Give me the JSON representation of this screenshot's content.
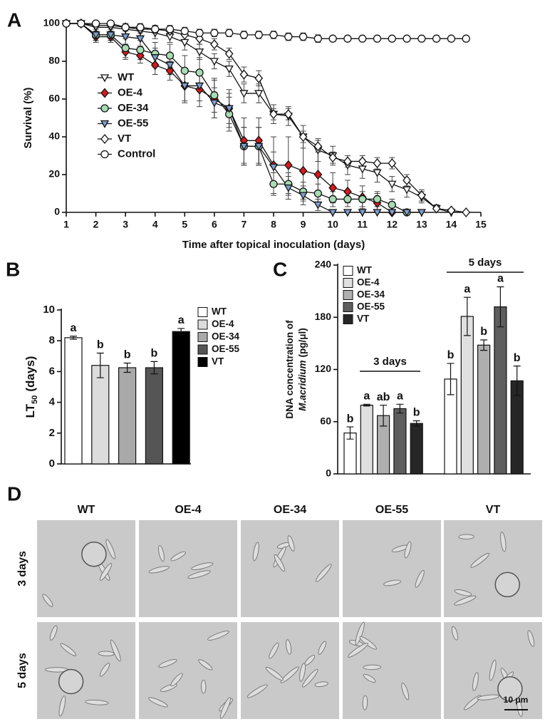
{
  "chart_data": [
    {
      "type": "line",
      "panel": "A",
      "xlabel": "Time after topical inoculation (days)",
      "ylabel": "Survival (%)",
      "xlim": [
        1,
        15
      ],
      "xticks": [
        1,
        2,
        3,
        4,
        5,
        6,
        7,
        8,
        9,
        10,
        11,
        12,
        13,
        14,
        15
      ],
      "ylim": [
        0,
        100
      ],
      "yticks": [
        0,
        20,
        40,
        60,
        80,
        100
      ],
      "x": [
        1,
        1.5,
        2,
        2.5,
        3,
        3.5,
        4,
        4.5,
        5,
        5.5,
        6,
        6.5,
        7,
        7.5,
        8,
        8.5,
        9,
        9.5,
        10,
        10.5,
        11,
        11.5,
        12,
        12.5,
        13,
        13.5,
        14,
        14.5
      ],
      "series": [
        {
          "name": "WT",
          "marker": "triangle-down",
          "color": "#ffffff",
          "values": [
            100,
            100,
            98,
            98,
            97,
            96,
            95,
            93,
            90,
            85,
            80,
            76,
            63,
            63,
            52,
            51,
            40,
            33,
            30,
            25,
            23,
            21,
            15,
            12,
            8,
            2,
            0,
            null
          ],
          "errors": [
            0,
            0,
            3,
            3,
            3,
            3,
            3,
            3,
            4,
            4,
            4,
            4,
            5,
            5,
            5,
            5,
            6,
            6,
            5,
            5,
            5,
            5,
            4,
            4,
            3,
            2,
            0,
            null
          ]
        },
        {
          "name": "OE-4",
          "marker": "diamond",
          "color": "#d7191c",
          "values": [
            100,
            100,
            93,
            93,
            85,
            83,
            78,
            75,
            67,
            65,
            60,
            55,
            38,
            38,
            25,
            25,
            22,
            20,
            13,
            11,
            8,
            5,
            0,
            null,
            null,
            null,
            null,
            null
          ],
          "errors": [
            0,
            0,
            3,
            3,
            4,
            4,
            5,
            5,
            9,
            9,
            10,
            10,
            12,
            12,
            15,
            15,
            15,
            15,
            8,
            6,
            6,
            5,
            0,
            null,
            null,
            null,
            null,
            null
          ]
        },
        {
          "name": "OE-34",
          "marker": "circle",
          "color": "#a8dcb4",
          "values": [
            100,
            100,
            94,
            94,
            87,
            86,
            84,
            83,
            75,
            74,
            62,
            52,
            35,
            35,
            15,
            15,
            11,
            10,
            7,
            7,
            7,
            7,
            4,
            0,
            null,
            null,
            null,
            null
          ],
          "errors": [
            0,
            0,
            3,
            3,
            5,
            5,
            6,
            6,
            8,
            8,
            9,
            9,
            10,
            10,
            6,
            6,
            5,
            5,
            4,
            4,
            4,
            4,
            3,
            0,
            null,
            null,
            null,
            null
          ]
        },
        {
          "name": "OE-55",
          "marker": "triangle-down",
          "color": "#7f9fd0",
          "values": [
            100,
            100,
            94,
            94,
            93,
            92,
            82,
            78,
            67,
            67,
            58,
            55,
            35,
            35,
            24,
            13,
            9,
            4,
            0,
            0,
            0,
            0,
            0,
            0,
            0,
            null,
            null,
            null
          ],
          "errors": [
            0,
            0,
            3,
            3,
            4,
            4,
            5,
            5,
            8,
            8,
            8,
            8,
            10,
            10,
            8,
            6,
            5,
            3,
            0,
            0,
            0,
            0,
            0,
            0,
            0,
            null,
            null,
            null
          ]
        },
        {
          "name": "VT",
          "marker": "diamond",
          "color": "#ffffff",
          "values": [
            100,
            100,
            99,
            99,
            98,
            97,
            97,
            96,
            94,
            92,
            89,
            84,
            73,
            71,
            52,
            52,
            40,
            35,
            29,
            27,
            27,
            26,
            26,
            17,
            9,
            2,
            1,
            0
          ],
          "errors": [
            0,
            0,
            2,
            2,
            2,
            2,
            2,
            2,
            3,
            3,
            3,
            3,
            4,
            4,
            3,
            3,
            3,
            3,
            3,
            3,
            3,
            3,
            3,
            3,
            3,
            2,
            1,
            0
          ]
        },
        {
          "name": "Control",
          "marker": "circle",
          "color": "#ffffff",
          "values": [
            100,
            100,
            100,
            100,
            98,
            98,
            97,
            97,
            96,
            95,
            95,
            95,
            94,
            94,
            94,
            93,
            93,
            92,
            92,
            92,
            92,
            92,
            92,
            92,
            92,
            92,
            92,
            92
          ],
          "errors": [
            0,
            0,
            1,
            1,
            2,
            2,
            2,
            2,
            2,
            2,
            2,
            2,
            2,
            2,
            2,
            2,
            2,
            2,
            1,
            1,
            1,
            1,
            1,
            1,
            1,
            1,
            1,
            1
          ]
        }
      ]
    },
    {
      "type": "bar",
      "panel": "B",
      "ylabel": {
        "main": "LT",
        "subscript": "50",
        "unit": "(days)"
      },
      "ylim": [
        0,
        10
      ],
      "yticks": [
        0,
        2,
        4,
        6,
        8,
        10
      ],
      "categories": [
        null
      ],
      "series": [
        {
          "name": "WT",
          "color": "#ffffff",
          "values": [
            8.2
          ],
          "errors": [
            0.1
          ],
          "letters": [
            "a"
          ]
        },
        {
          "name": "OE-4",
          "color": "#dcdcdc",
          "values": [
            6.4
          ],
          "errors": [
            0.8
          ],
          "letters": [
            "b"
          ]
        },
        {
          "name": "OE-34",
          "color": "#a9a9a9",
          "values": [
            6.25
          ],
          "errors": [
            0.3
          ],
          "letters": [
            "b"
          ]
        },
        {
          "name": "OE-55",
          "color": "#555555",
          "values": [
            6.25
          ],
          "errors": [
            0.4
          ],
          "letters": [
            "b"
          ]
        },
        {
          "name": "VT",
          "color": "#000000",
          "values": [
            8.6
          ],
          "errors": [
            0.2
          ],
          "letters": [
            "a"
          ]
        }
      ]
    },
    {
      "type": "bar",
      "panel": "C",
      "ylabel": {
        "main": "DNA concentration of",
        "italic": "M.acridium",
        "unit": "(pg/μl)"
      },
      "ylim": [
        0,
        240
      ],
      "yticks": [
        0,
        60,
        120,
        180,
        240
      ],
      "categories": [
        "3 days",
        "5 days"
      ],
      "series": [
        {
          "name": "WT",
          "color": "#ffffff",
          "values": [
            47,
            109
          ],
          "errors": [
            7,
            18
          ],
          "letters": [
            "b",
            "b"
          ]
        },
        {
          "name": "OE-4",
          "color": "#e0e0e0",
          "values": [
            79,
            181
          ],
          "errors": [
            1,
            22
          ],
          "letters": [
            "a",
            "a"
          ]
        },
        {
          "name": "OE-34",
          "color": "#afafaf",
          "values": [
            67,
            148
          ],
          "errors": [
            12,
            6
          ],
          "letters": [
            "ab",
            "b"
          ]
        },
        {
          "name": "OE-55",
          "color": "#5e5e5e",
          "values": [
            75,
            192
          ],
          "errors": [
            5,
            23
          ],
          "letters": [
            "a",
            "a"
          ]
        },
        {
          "name": "VT",
          "color": "#262626",
          "values": [
            58,
            107
          ],
          "errors": [
            3,
            17
          ],
          "letters": [
            "b",
            "b"
          ]
        }
      ]
    }
  ],
  "micrographs": {
    "panel": "D",
    "columns": [
      "WT",
      "OE-4",
      "OE-34",
      "OE-55",
      "VT"
    ],
    "rows": [
      "3 days",
      "5 days"
    ],
    "scale_bar": "10 μm"
  }
}
